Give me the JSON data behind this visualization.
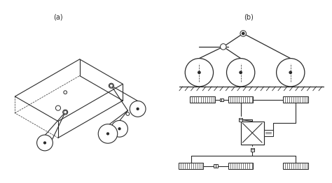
{
  "bg_color": "#ffffff",
  "line_color": "#2a2a2a",
  "fig_width": 4.74,
  "fig_height": 2.62,
  "dpi": 100
}
